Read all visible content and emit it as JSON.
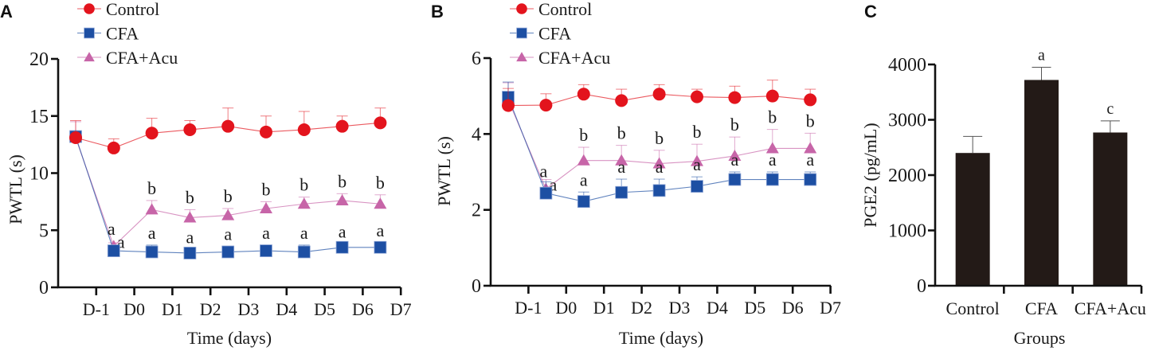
{
  "colors": {
    "control": "#e3141d",
    "cfa": "#1d4fa3",
    "cfa_acu": "#c765a8",
    "bar": "#231a17",
    "axis": "#111111"
  },
  "chart_data": [
    {
      "panel": "A",
      "type": "line",
      "title": "",
      "xlabel": "Time (days)",
      "ylabel": "PWTL (s)",
      "ylim": [
        0,
        20
      ],
      "yticks": [
        "0",
        "5",
        "10",
        "15",
        "20"
      ],
      "categories": [
        "D-1",
        "D0",
        "D1",
        "D2",
        "D3",
        "D4",
        "D5",
        "D6",
        "D7"
      ],
      "legend_position": "top-left",
      "grid": false,
      "series": [
        {
          "name": "Control",
          "marker": "circle",
          "key": "control",
          "values": [
            13.1,
            12.2,
            13.5,
            13.8,
            14.1,
            13.6,
            13.8,
            14.1,
            14.4
          ],
          "error": [
            1.5,
            0.8,
            1.3,
            0.8,
            1.6,
            1.4,
            1.6,
            0.9,
            1.3
          ],
          "annotations": [
            "",
            "",
            "",
            "",
            "",
            "",
            "",
            "",
            ""
          ]
        },
        {
          "name": "CFA",
          "marker": "square",
          "key": "cfa",
          "values": [
            13.2,
            3.2,
            3.1,
            3.0,
            3.1,
            3.2,
            3.1,
            3.5,
            3.5
          ],
          "error": [
            0.5,
            0.3,
            0.6,
            0.3,
            0.5,
            0.5,
            0.6,
            0.3,
            0.4
          ],
          "annotations": [
            "",
            "a",
            "a",
            "a",
            "a",
            "a",
            "a",
            "a",
            "a"
          ]
        },
        {
          "name": "CFA+Acu",
          "marker": "triangle",
          "key": "cfa_acu",
          "values": [
            13.1,
            3.6,
            6.8,
            6.1,
            6.3,
            6.9,
            7.3,
            7.6,
            7.3
          ],
          "error": [
            1.4,
            0.3,
            0.8,
            0.7,
            0.6,
            0.6,
            0.6,
            0.6,
            0.8
          ],
          "annotations": [
            "",
            "a",
            "b",
            "b",
            "b",
            "b",
            "b",
            "b",
            "b"
          ]
        }
      ]
    },
    {
      "panel": "B",
      "type": "line",
      "title": "",
      "xlabel": "Time (days)",
      "ylabel": "PWTL (s)",
      "ylim": [
        0,
        6
      ],
      "yticks": [
        "0",
        "2",
        "4",
        "6"
      ],
      "categories": [
        "D-1",
        "D0",
        "D1",
        "D2",
        "D3",
        "D4",
        "D5",
        "D6",
        "D7"
      ],
      "legend_position": "top-left",
      "grid": false,
      "series": [
        {
          "name": "Control",
          "marker": "circle",
          "key": "control",
          "values": [
            4.75,
            4.76,
            5.05,
            4.88,
            5.05,
            4.98,
            4.96,
            5.0,
            4.9
          ],
          "error": [
            0.45,
            0.3,
            0.25,
            0.3,
            0.25,
            0.2,
            0.3,
            0.42,
            0.28
          ],
          "annotations": [
            "",
            "",
            "",
            "",
            "",
            "",
            "",
            "",
            ""
          ]
        },
        {
          "name": "CFA",
          "marker": "square",
          "key": "cfa",
          "values": [
            4.97,
            2.44,
            2.22,
            2.46,
            2.51,
            2.62,
            2.8,
            2.8,
            2.8
          ],
          "error": [
            0.4,
            0.3,
            0.25,
            0.35,
            0.3,
            0.25,
            0.2,
            0.2,
            0.2
          ],
          "annotations": [
            "",
            "a",
            "a",
            "a",
            "a",
            "a",
            "a",
            "a",
            "a"
          ]
        },
        {
          "name": "CFA+Acu",
          "marker": "triangle",
          "key": "cfa_acu",
          "values": [
            4.9,
            2.55,
            3.3,
            3.3,
            3.22,
            3.28,
            3.42,
            3.62,
            3.62
          ],
          "error": [
            0.45,
            0.25,
            0.35,
            0.4,
            0.35,
            0.45,
            0.5,
            0.5,
            0.4
          ],
          "annotations": [
            "",
            "a",
            "b",
            "b",
            "b",
            "b",
            "b",
            "b",
            "b"
          ]
        }
      ]
    },
    {
      "panel": "C",
      "type": "bar",
      "title": "",
      "xlabel": "Groups",
      "ylabel": "PGE2 (pg/mL)",
      "ylim": [
        0,
        4000
      ],
      "yticks": [
        "0",
        "1000",
        "2000",
        "3000",
        "4000"
      ],
      "categories": [
        "Control",
        "CFA",
        "CFA+Acu"
      ],
      "values": [
        2400,
        3720,
        2770
      ],
      "error": [
        300,
        230,
        210
      ],
      "annotations": [
        "",
        "a",
        "c"
      ],
      "grid": false
    }
  ]
}
